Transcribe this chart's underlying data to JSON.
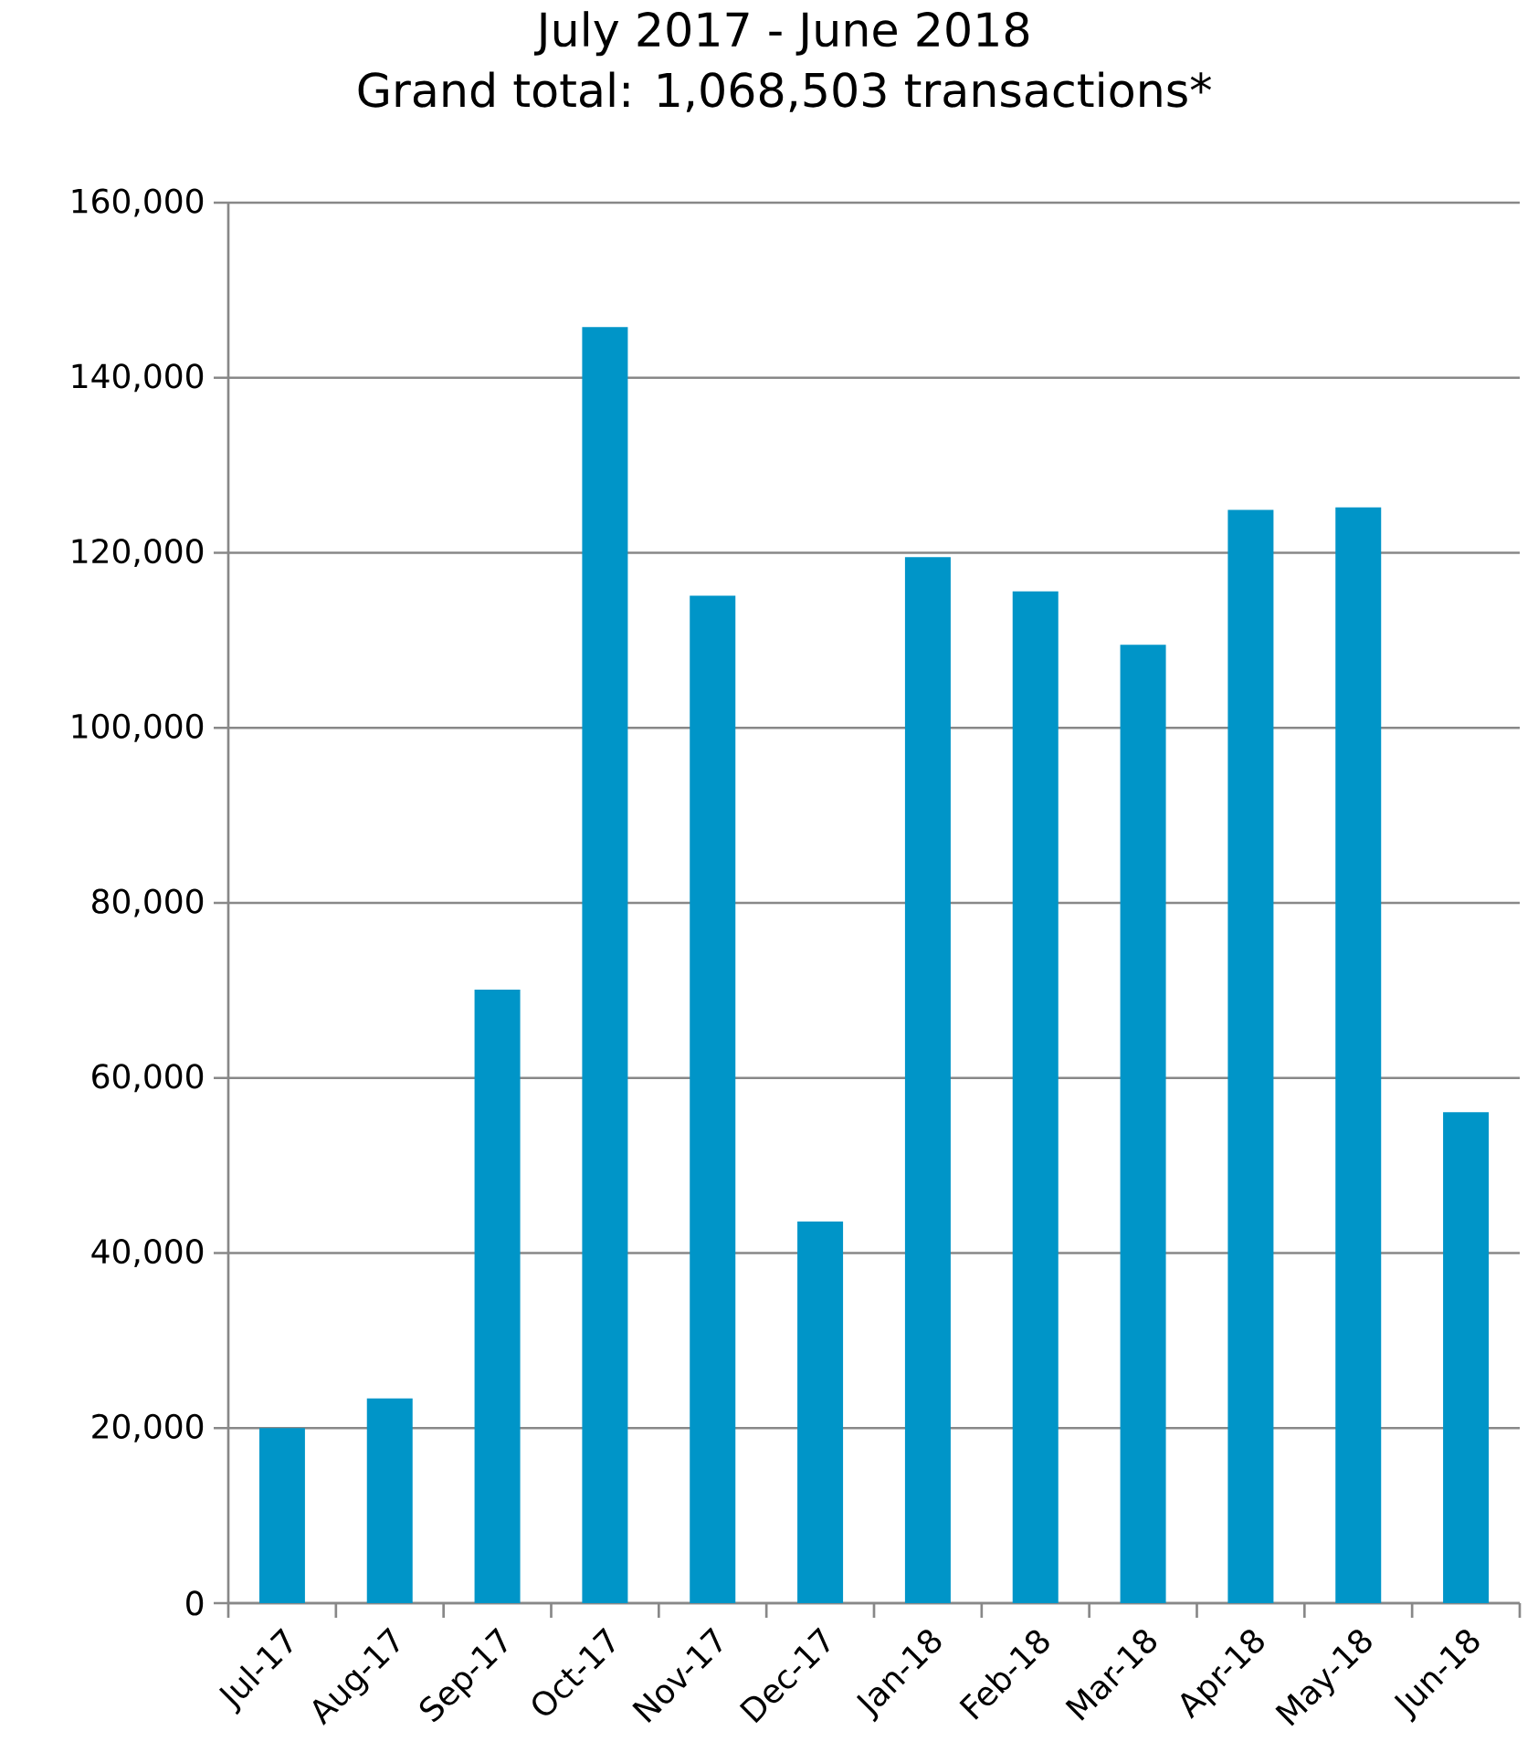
{
  "chart_data": {
    "type": "bar",
    "title": "July 2017 - June 2018",
    "subtitle": "Grand total: 1,068,503 transactions*",
    "categories": [
      "Jul-17",
      "Aug-17",
      "Sep-17",
      "Oct-17",
      "Nov-17",
      "Dec-17",
      "Jan-18",
      "Feb-18",
      "Mar-18",
      "Apr-18",
      "May-18",
      "Jun-18"
    ],
    "values": [
      20000,
      23400,
      70100,
      145800,
      115100,
      43600,
      119500,
      115600,
      109500,
      124900,
      125200,
      56100
    ],
    "color": "#0095c8",
    "ylim": [
      0,
      160000
    ],
    "yticks": [
      0,
      {
        "value": 20000,
        "label": "20,000"
      },
      {
        "value": 40000,
        "label": "40,000"
      },
      {
        "value": 60000,
        "label": "60,000"
      },
      {
        "value": 80000,
        "label": "80,000"
      },
      {
        "value": 100000,
        "label": "100,000"
      },
      {
        "value": 120000,
        "label": "120,000"
      },
      {
        "value": 140000,
        "label": "140,000"
      },
      {
        "value": 160000,
        "label": "160,000"
      }
    ],
    "grid": "y"
  }
}
